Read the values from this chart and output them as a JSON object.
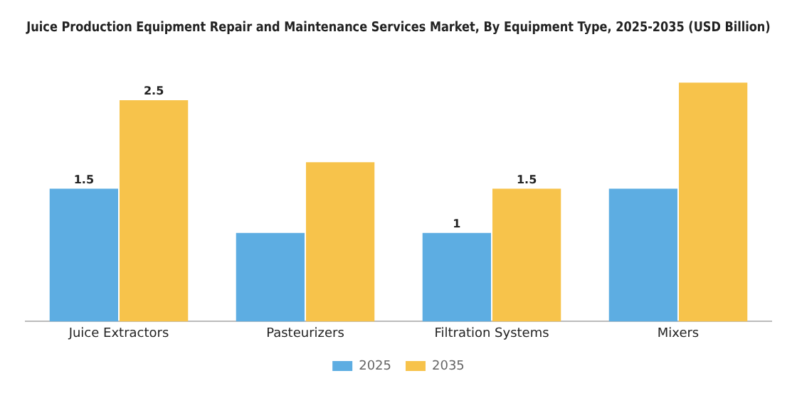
{
  "chart_data": {
    "type": "bar",
    "title": "Juice Production Equipment Repair and Maintenance Services Market, By Equipment Type, 2025-2035 (USD Billion)",
    "categories": [
      "Juice Extractors",
      "Pasteurizers",
      "Filtration Systems",
      "Mixers"
    ],
    "series": [
      {
        "name": "2025",
        "color": "#5dade2",
        "values": [
          1.5,
          1.0,
          1.0,
          1.5
        ],
        "value_labels": [
          "1.5",
          null,
          "1",
          null
        ]
      },
      {
        "name": "2035",
        "color": "#f7c34b",
        "values": [
          2.5,
          1.8,
          1.5,
          2.7
        ],
        "value_labels": [
          "2.5",
          null,
          "1.5",
          null
        ]
      }
    ],
    "grid": false,
    "legend": "bottom",
    "tick_labels": "x"
  }
}
